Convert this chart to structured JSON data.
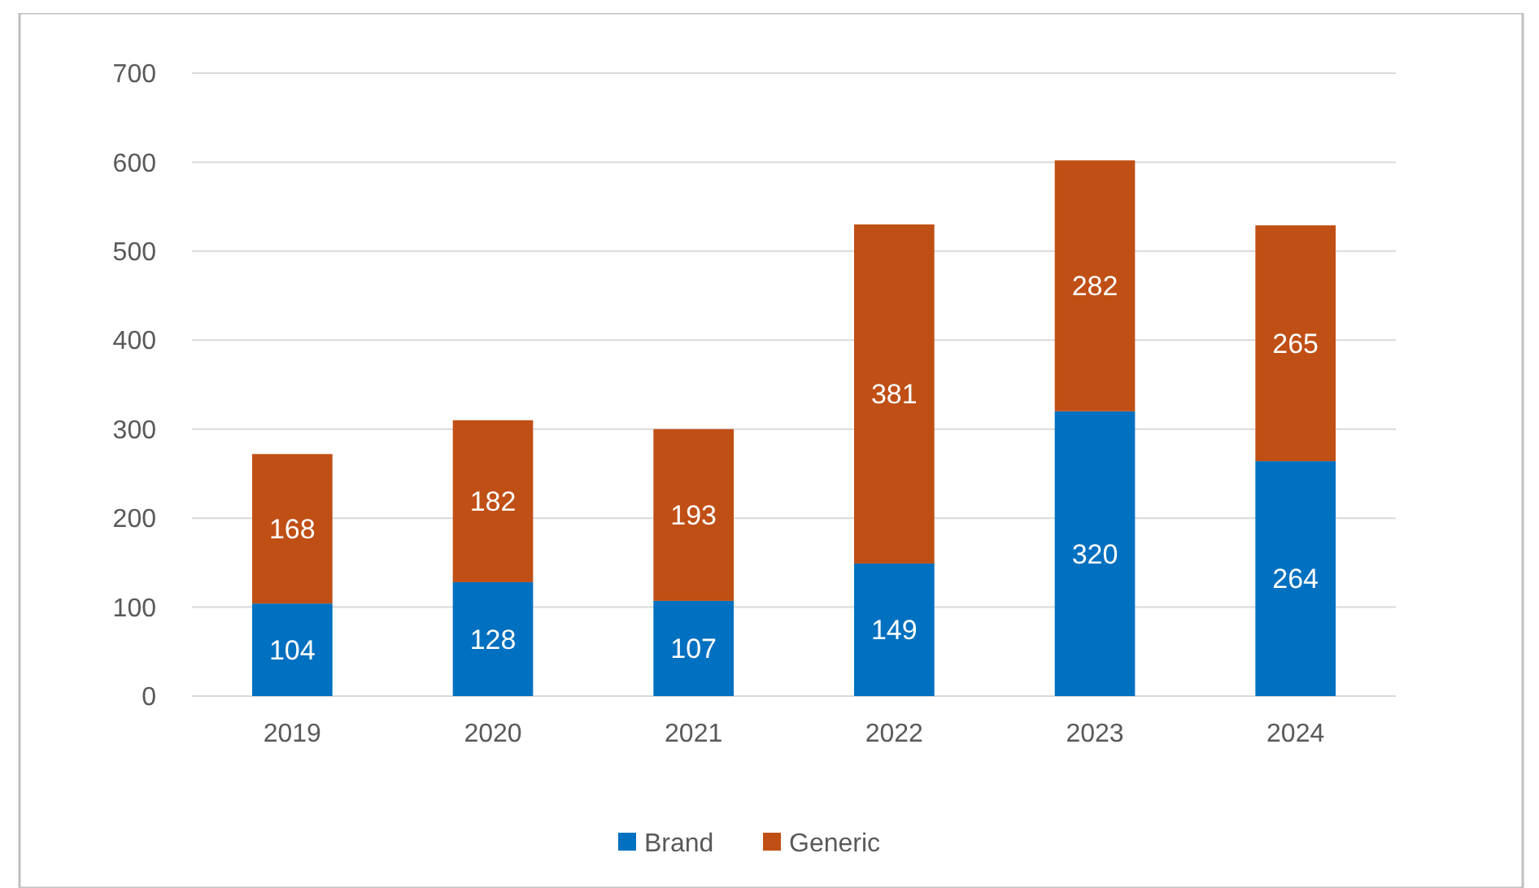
{
  "chart_data": {
    "type": "bar",
    "stacked": true,
    "categories": [
      "2019",
      "2020",
      "2021",
      "2022",
      "2023",
      "2024"
    ],
    "series": [
      {
        "name": "Brand",
        "color": "#0070c0",
        "values": [
          104,
          128,
          107,
          149,
          320,
          264
        ]
      },
      {
        "name": "Generic",
        "color": "#c04f15",
        "values": [
          168,
          182,
          193,
          381,
          282,
          265
        ]
      }
    ],
    "ylim": [
      0,
      700
    ],
    "yticks": [
      0,
      100,
      200,
      300,
      400,
      500,
      600,
      700
    ],
    "grid": "y",
    "legend": "bottom",
    "data_labels": true
  }
}
